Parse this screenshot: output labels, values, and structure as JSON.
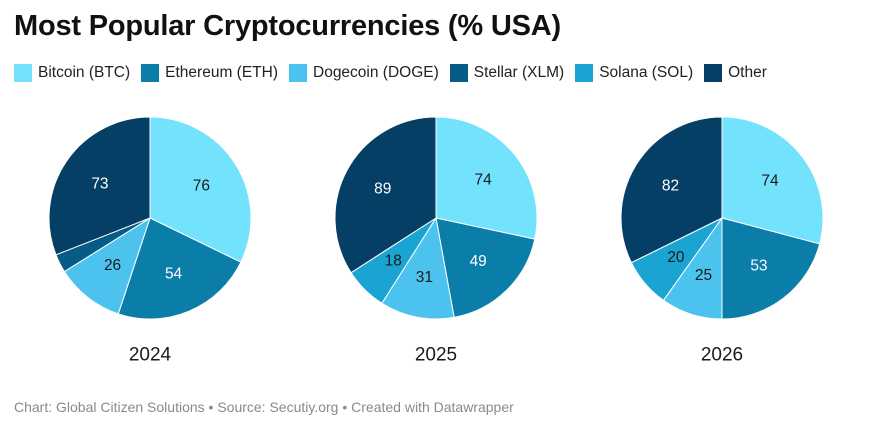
{
  "chart_data": {
    "type": "pie",
    "title": "Most Popular Cryptocurrencies (% USA)",
    "legend_position": "top",
    "categories": [
      "Bitcoin (BTC)",
      "Ethereum (ETH)",
      "Dogecoin (DOGE)",
      "Stellar (XLM)",
      "Solana (SOL)",
      "Other"
    ],
    "colors": [
      "#72e2fd",
      "#0a7ea8",
      "#4cc3ef",
      "#075b87",
      "#1aa4d1",
      "#063f66"
    ],
    "charts": [
      {
        "year": "2024",
        "values": [
          76,
          54,
          26,
          7,
          0,
          73
        ],
        "labels": [
          "76",
          "54",
          "26",
          "",
          "",
          "73"
        ]
      },
      {
        "year": "2025",
        "values": [
          74,
          49,
          31,
          0,
          18,
          89
        ],
        "labels": [
          "74",
          "49",
          "31",
          "",
          "18",
          "89"
        ]
      },
      {
        "year": "2026",
        "values": [
          74,
          53,
          25,
          0,
          20,
          82
        ],
        "labels": [
          "74",
          "53",
          "25",
          "",
          "20",
          "82"
        ]
      }
    ]
  },
  "footer": "Chart: Global Citizen Solutions • Source: Secutiy.org • Created with Datawrapper"
}
